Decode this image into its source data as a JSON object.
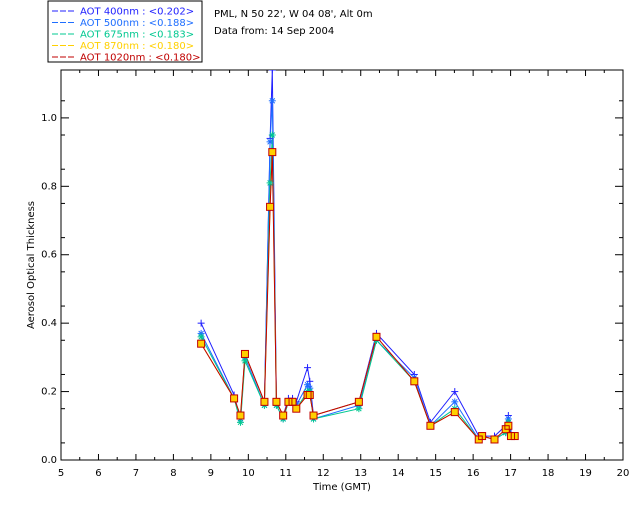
{
  "chart_data": {
    "type": "line",
    "info_line1": "PML, N 50 22', W 04 08', Alt 0m",
    "info_line2": "Data from: 14 Sep 2004",
    "xlabel": "Time (GMT)",
    "ylabel": "Aerosol Optical Thickness",
    "xlim": [
      5,
      20
    ],
    "ylim": [
      0,
      1.14
    ],
    "xticks": [
      "5",
      "6",
      "7",
      "8",
      "9",
      "10",
      "11",
      "12",
      "13",
      "14",
      "15",
      "16",
      "17",
      "18",
      "19",
      "20"
    ],
    "yticks": [
      "0.0",
      "0.2",
      "0.4",
      "0.6",
      "0.8",
      "1.0"
    ],
    "grid": false,
    "legend_position": "top-left-outside",
    "x": [
      8.74,
      9.62,
      9.79,
      9.91,
      10.43,
      10.58,
      10.64,
      10.75,
      10.93,
      11.07,
      11.18,
      11.28,
      11.58,
      11.64,
      11.74,
      12.95,
      13.42,
      14.43,
      14.86,
      15.51,
      16.15,
      16.24,
      16.57,
      16.87,
      16.94,
      17.01,
      17.11
    ],
    "series": [
      {
        "name": "AOT 400nm : <0.202>",
        "color": "#2020ff",
        "marker": "plus",
        "values": [
          0.4,
          0.19,
          0.12,
          0.31,
          0.17,
          0.94,
          1.14,
          0.17,
          0.13,
          0.18,
          0.18,
          0.17,
          0.27,
          0.23,
          0.13,
          0.17,
          0.37,
          0.25,
          0.11,
          0.2,
          0.07,
          0.07,
          0.07,
          0.1,
          0.13,
          0.08,
          0.07
        ]
      },
      {
        "name": "AOT 500nm : <0.188>",
        "color": "#1e6eff",
        "marker": "asterisk",
        "values": [
          0.37,
          0.18,
          0.12,
          0.3,
          0.16,
          0.93,
          1.05,
          0.16,
          0.12,
          0.17,
          0.17,
          0.16,
          0.22,
          0.21,
          0.12,
          0.16,
          0.35,
          0.24,
          0.1,
          0.17,
          0.06,
          0.07,
          0.06,
          0.08,
          0.12,
          0.07,
          0.07
        ]
      },
      {
        "name": "AOT 675nm : <0.183>",
        "color": "#00c890",
        "marker": "asterisk",
        "values": [
          0.36,
          0.18,
          0.11,
          0.29,
          0.16,
          0.81,
          0.95,
          0.16,
          0.12,
          0.17,
          0.17,
          0.15,
          0.2,
          0.2,
          0.12,
          0.15,
          0.35,
          0.23,
          0.1,
          0.15,
          0.06,
          0.07,
          0.06,
          0.08,
          0.11,
          0.07,
          0.07
        ]
      },
      {
        "name": "AOT 870nm : <0.180>",
        "color": "#ffd000",
        "marker": "square",
        "values": [
          0.34,
          0.18,
          0.13,
          0.31,
          0.17,
          0.74,
          0.9,
          0.17,
          0.13,
          0.17,
          0.17,
          0.15,
          0.19,
          0.19,
          0.13,
          0.17,
          0.36,
          0.23,
          0.1,
          0.14,
          0.06,
          0.07,
          0.06,
          0.09,
          0.1,
          0.07,
          0.07
        ]
      },
      {
        "name": "AOT 1020nm : <0.180>",
        "color": "#c00000",
        "marker": "square",
        "values": [
          0.34,
          0.18,
          0.13,
          0.31,
          0.17,
          0.74,
          0.9,
          0.17,
          0.13,
          0.17,
          0.17,
          0.15,
          0.19,
          0.19,
          0.13,
          0.17,
          0.36,
          0.23,
          0.1,
          0.14,
          0.06,
          0.07,
          0.06,
          0.09,
          0.1,
          0.07,
          0.07
        ]
      }
    ]
  }
}
